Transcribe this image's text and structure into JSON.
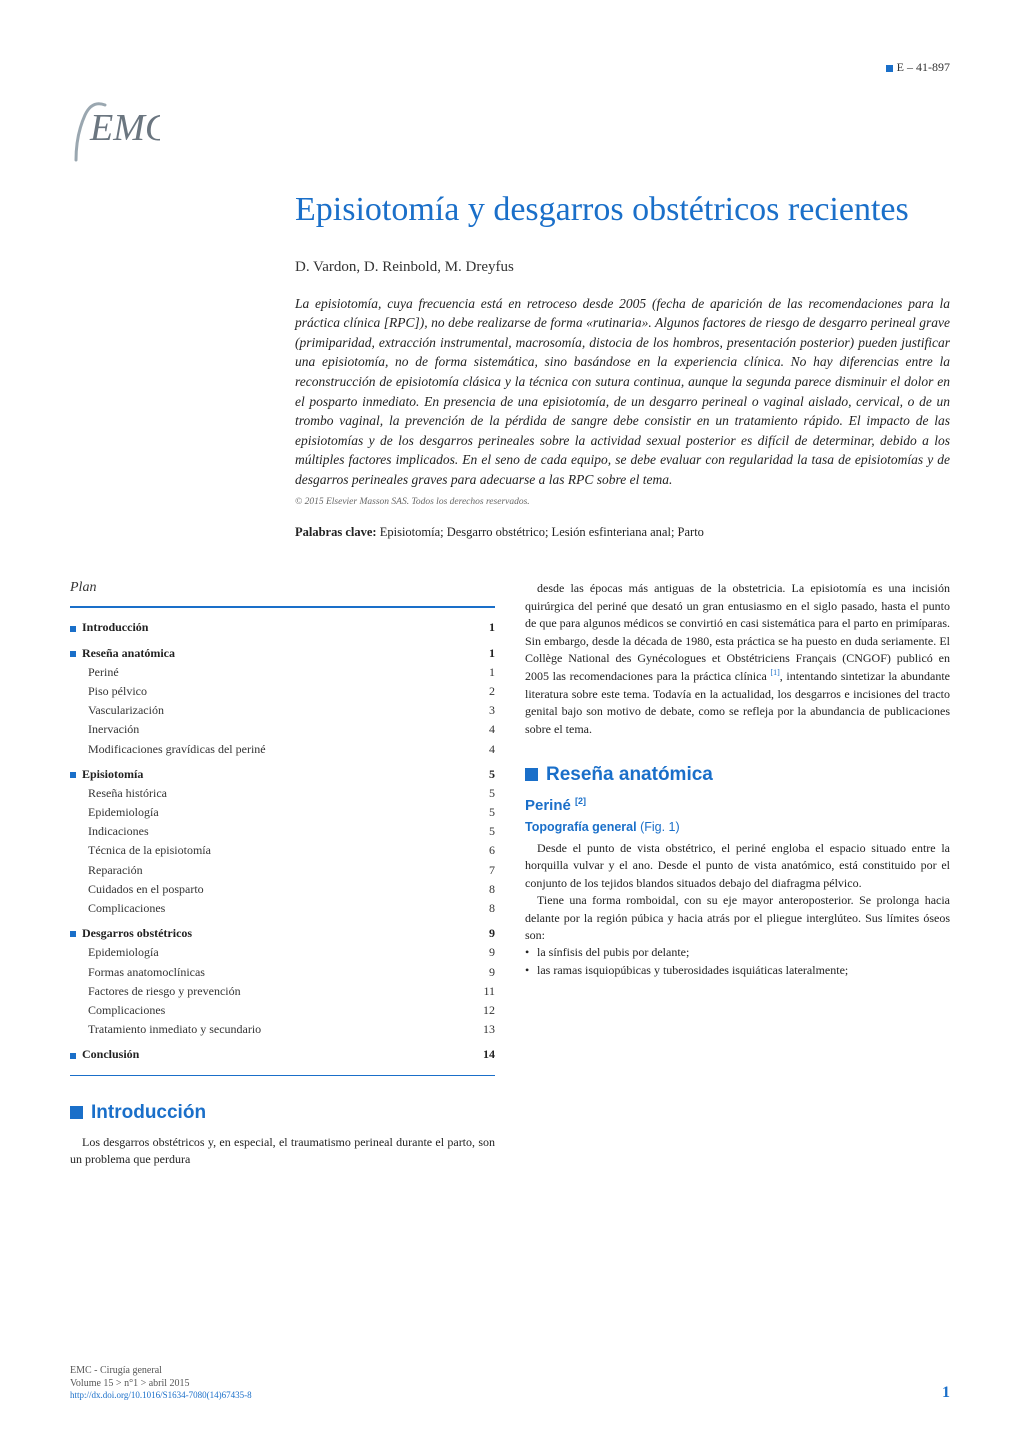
{
  "header_marker": "E – 41-897",
  "title": "Episiotomía y desgarros obstétricos recientes",
  "authors": "D. Vardon, D. Reinbold, M. Dreyfus",
  "abstract": "La episiotomía, cuya frecuencia está en retroceso desde 2005 (fecha de aparición de las recomendaciones para la práctica clínica [RPC]), no debe realizarse de forma «rutinaria». Algunos factores de riesgo de desgarro perineal grave (primiparidad, extracción instrumental, macrosomía, distocia de los hombros, presentación posterior) pueden justificar una episiotomía, no de forma sistemática, sino basándose en la experiencia clínica. No hay diferencias entre la reconstrucción de episiotomía clásica y la técnica con sutura continua, aunque la segunda parece disminuir el dolor en el posparto inmediato. En presencia de una episiotomía, de un desgarro perineal o vaginal aislado, cervical, o de un trombo vaginal, la prevención de la pérdida de sangre debe consistir en un tratamiento rápido. El impacto de las episiotomías y de los desgarros perineales sobre la actividad sexual posterior es difícil de determinar, debido a los múltiples factores implicados. En el seno de cada equipo, se debe evaluar con regularidad la tasa de episiotomías y de desgarros perineales graves para adecuarse a las RPC sobre el tema.",
  "copyright": "© 2015 Elsevier Masson SAS. Todos los derechos reservados.",
  "keywords_label": "Palabras clave:",
  "keywords": "Episiotomía; Desgarro obstétrico; Lesión esfinteriana anal; Parto",
  "plan_title": "Plan",
  "plan": [
    {
      "type": "section",
      "label": "Introducción",
      "page": "1"
    },
    {
      "type": "section",
      "label": "Reseña anatómica",
      "page": "1"
    },
    {
      "type": "sub",
      "label": "Periné",
      "page": "1"
    },
    {
      "type": "sub",
      "label": "Piso pélvico",
      "page": "2"
    },
    {
      "type": "sub",
      "label": "Vascularización",
      "page": "3"
    },
    {
      "type": "sub",
      "label": "Inervación",
      "page": "4"
    },
    {
      "type": "sub",
      "label": "Modificaciones gravídicas del periné",
      "page": "4"
    },
    {
      "type": "section",
      "label": "Episiotomía",
      "page": "5"
    },
    {
      "type": "sub",
      "label": "Reseña histórica",
      "page": "5"
    },
    {
      "type": "sub",
      "label": "Epidemiología",
      "page": "5"
    },
    {
      "type": "sub",
      "label": "Indicaciones",
      "page": "5"
    },
    {
      "type": "sub",
      "label": "Técnica de la episiotomía",
      "page": "6"
    },
    {
      "type": "sub",
      "label": "Reparación",
      "page": "7"
    },
    {
      "type": "sub",
      "label": "Cuidados en el posparto",
      "page": "8"
    },
    {
      "type": "sub",
      "label": "Complicaciones",
      "page": "8"
    },
    {
      "type": "section",
      "label": "Desgarros obstétricos",
      "page": "9"
    },
    {
      "type": "sub",
      "label": "Epidemiología",
      "page": "9"
    },
    {
      "type": "sub",
      "label": "Formas anatomoclínicas",
      "page": "9"
    },
    {
      "type": "sub",
      "label": "Factores de riesgo y prevención",
      "page": "11"
    },
    {
      "type": "sub",
      "label": "Complicaciones",
      "page": "12"
    },
    {
      "type": "sub",
      "label": "Tratamiento inmediato y secundario",
      "page": "13"
    },
    {
      "type": "section",
      "label": "Conclusión",
      "page": "14"
    }
  ],
  "intro_heading": "Introducción",
  "intro_p1": "Los desgarros obstétricos y, en especial, el traumatismo perineal durante el parto, son un problema que perdura",
  "right_p1": "desde las épocas más antiguas de la obstetricia. La episiotomía es una incisión quirúrgica del periné que desató un gran entusiasmo en el siglo pasado, hasta el punto de que para algunos médicos se convirtió en casi sistemática para el parto en primíparas. Sin embargo, desde la década de 1980, esta práctica se ha puesto en duda seriamente. El Collège National des Gynécologues et Obstétriciens Français (CNGOF) publicó en 2005 las recomendaciones para la práctica clínica",
  "right_p1_after": ", intentando sintetizar la abundante literatura sobre este tema. Todavía en la actualidad, los desgarros e incisiones del tracto genital bajo son motivo de debate, como se refleja por la abundancia de publicaciones sobre el tema.",
  "resena_heading": "Reseña anatómica",
  "perine_heading": "Periné",
  "perine_ref": "[2]",
  "topografia_heading": "Topografía general",
  "topografia_paren": "(Fig. 1)",
  "topo_p1": "Desde el punto de vista obstétrico, el periné engloba el espacio situado entre la horquilla vulvar y el ano. Desde el punto de vista anatómico, está constituido por el conjunto de los tejidos blandos situados debajo del diafragma pélvico.",
  "topo_p2": "Tiene una forma romboidal, con su eje mayor anteroposterior. Se prolonga hacia delante por la región púbica y hacia atrás por el pliegue interglúteo. Sus límites óseos son:",
  "topo_bullets": [
    "la sínfisis del pubis por delante;",
    "las ramas isquiopúbicas y tuberosidades isquiáticas lateralmente;"
  ],
  "footer_journal": "EMC - Cirugía general",
  "footer_vol": "Volume 15 > n°1 > abril 2015",
  "footer_doi": "http://dx.doi.org/10.1016/S1634-7080(14)67435-8",
  "footer_page": "1",
  "colors": {
    "primary": "#1a6fc9",
    "text": "#222222",
    "muted": "#666666"
  }
}
